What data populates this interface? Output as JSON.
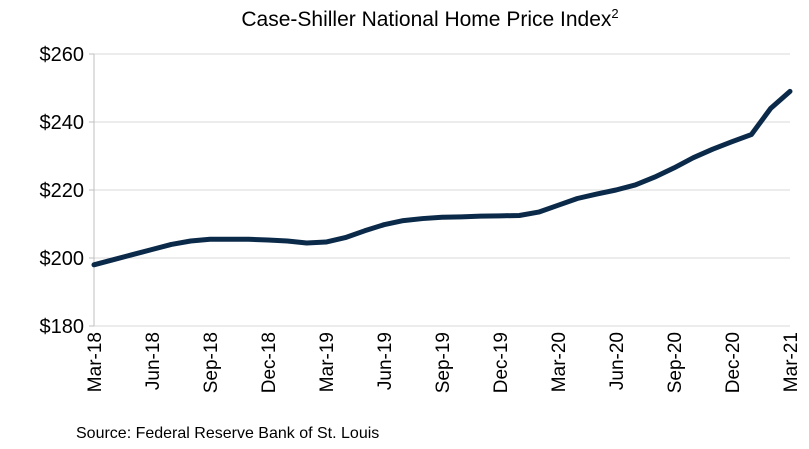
{
  "chart_data": {
    "type": "line",
    "title": "Case-Shiller National Home Price Index",
    "title_superscript": "2",
    "source": "Source: Federal Reserve Bank of St. Louis",
    "categories": [
      "Mar-18",
      null,
      null,
      "Jun-18",
      null,
      null,
      "Sep-18",
      null,
      null,
      "Dec-18",
      null,
      null,
      "Mar-19",
      null,
      null,
      "Jun-19",
      null,
      null,
      "Sep-19",
      null,
      null,
      "Dec-19",
      null,
      null,
      "Mar-20",
      null,
      null,
      "Jun-20",
      null,
      null,
      "Sep-20",
      null,
      null,
      "Dec-20",
      null,
      null,
      "Mar-21"
    ],
    "series": [
      {
        "name": "Case-Shiller National Home Price Index",
        "color": "#0b2a4a",
        "values": [
          198,
          199.5,
          201,
          202.5,
          204,
          205,
          205.5,
          205.5,
          205.5,
          205.3,
          205,
          204.4,
          204.7,
          206,
          208,
          209.8,
          211,
          211.6,
          212,
          212.1,
          212.3,
          212.4,
          212.5,
          213.5,
          215.5,
          217.5,
          218.8,
          220,
          221.5,
          223.8,
          226.5,
          229.5,
          232,
          234.2,
          236.3,
          244,
          249
        ]
      }
    ],
    "ylim": [
      180,
      260
    ],
    "yticks": [
      {
        "value": 180,
        "label": "$180"
      },
      {
        "value": 200,
        "label": "$200"
      },
      {
        "value": 220,
        "label": "$220"
      },
      {
        "value": 240,
        "label": "$240"
      },
      {
        "value": 260,
        "label": "$260"
      }
    ],
    "grid": true
  }
}
